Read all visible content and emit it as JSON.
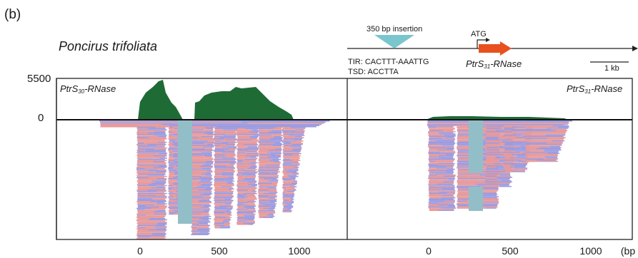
{
  "panel_label": "(b)",
  "species": "Poncirus trifoliata",
  "insertion": {
    "label": "350 bp insertion",
    "tir": "TIR: CACTTT-AAATTG",
    "tsd": "TSD: ACCTTA"
  },
  "gene_model": {
    "atg": "ATG",
    "gene_prefix": "PtrS",
    "gene_sub": "31",
    "gene_suffix": "-RNase",
    "scale_label": "1 kb"
  },
  "coverage_axis": {
    "max_label": "5500",
    "zero_label": "0"
  },
  "panels": [
    {
      "title_prefix": "PtrS",
      "title_sub": "30",
      "title_suffix": "-RNase"
    },
    {
      "title_prefix": "PtrS",
      "title_sub": "31",
      "title_suffix": "-RNase"
    }
  ],
  "x_axis": {
    "left_ticks": [
      "0",
      "500",
      "1000"
    ],
    "right_ticks": [
      "0",
      "500",
      "1000"
    ],
    "unit": "(bp"
  },
  "colors": {
    "coverage": "#1e6b36",
    "read_pink": "#e7999b",
    "read_purple": "#9b9be0",
    "gap_read": "#92bfc7",
    "insertion": "#79c6cf",
    "gene_arrow": "#e8501e"
  }
}
